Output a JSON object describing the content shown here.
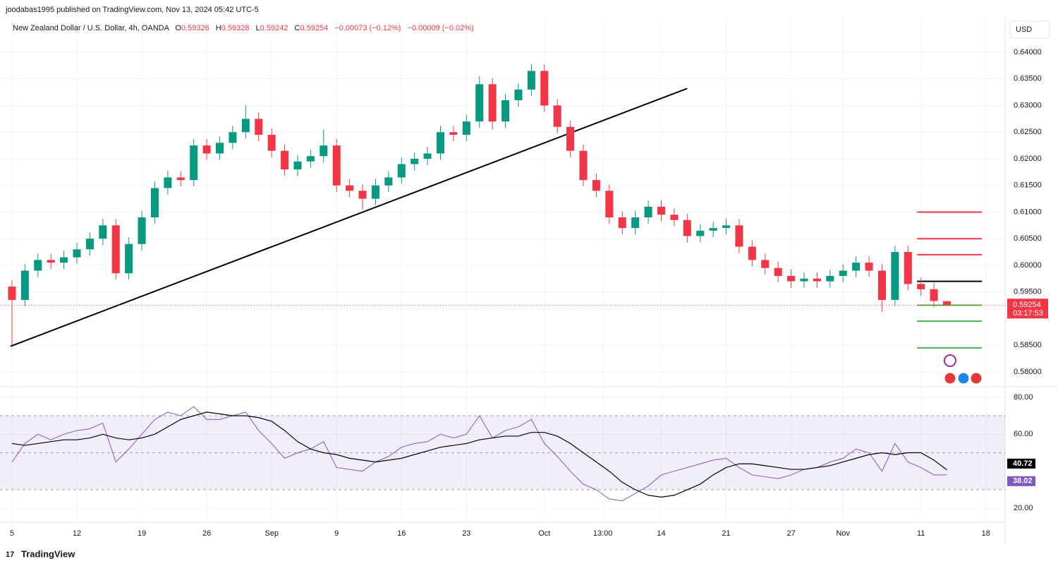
{
  "chart_data": {
    "type": "candlestick",
    "header": "joodabas1995 published on TradingView.com, Nov 13, 2024 05:42 UTC-5",
    "title": "New Zealand Dollar / U.S. Dollar, 4h, OANDA",
    "legend": {
      "o": "O",
      "h": "H",
      "l": "L",
      "c": "C",
      "change": "−0.00073 (−0.12%)",
      "change_ext": "−0.00009 (−0.02%)"
    },
    "currency": "USD",
    "countdown": "03:17:53",
    "brand": "TradingView",
    "up_color": "#089981",
    "down_color": "#f23645",
    "x": [
      0,
      1,
      2,
      3,
      4,
      5,
      6,
      7,
      8,
      9,
      10,
      11,
      12,
      13,
      14,
      15,
      16,
      17,
      18,
      19,
      20,
      21,
      22,
      23,
      24,
      25,
      26,
      27,
      28,
      29,
      30,
      31,
      32,
      33,
      34,
      35,
      36,
      37,
      38,
      39,
      40,
      41,
      42,
      43,
      44,
      45,
      46,
      47,
      48,
      49,
      50,
      51,
      52,
      53,
      54,
      55,
      56,
      57,
      58,
      59,
      60,
      61,
      62,
      63,
      64,
      65,
      66,
      67,
      68,
      69,
      70,
      71,
      72
    ],
    "open": [
      0.596,
      0.5935,
      0.599,
      0.601,
      0.6005,
      0.6015,
      0.603,
      0.605,
      0.6075,
      0.5985,
      0.604,
      0.609,
      0.6145,
      0.6165,
      0.616,
      0.6225,
      0.621,
      0.623,
      0.625,
      0.6275,
      0.6245,
      0.6215,
      0.618,
      0.6195,
      0.6205,
      0.6225,
      0.615,
      0.614,
      0.6125,
      0.615,
      0.6165,
      0.619,
      0.62,
      0.621,
      0.625,
      0.6245,
      0.627,
      0.634,
      0.627,
      0.631,
      0.633,
      0.6365,
      0.63,
      0.626,
      0.6215,
      0.616,
      0.614,
      0.609,
      0.607,
      0.609,
      0.611,
      0.6095,
      0.6085,
      0.6055,
      0.6065,
      0.607,
      0.6075,
      0.6035,
      0.601,
      0.5995,
      0.598,
      0.597,
      0.5975,
      0.597,
      0.598,
      0.599,
      0.6005,
      0.599,
      0.5935,
      0.6025,
      0.5965,
      0.5955,
      0.59326
    ],
    "high": [
      0.5972,
      0.6002,
      0.6022,
      0.6022,
      0.6027,
      0.6042,
      0.6062,
      0.6087,
      0.6087,
      0.6052,
      0.6102,
      0.6157,
      0.6177,
      0.6177,
      0.6237,
      0.6237,
      0.6242,
      0.6262,
      0.63,
      0.6287,
      0.6257,
      0.6227,
      0.6207,
      0.6217,
      0.6255,
      0.6237,
      0.6162,
      0.6152,
      0.6162,
      0.6177,
      0.6202,
      0.6212,
      0.6222,
      0.6262,
      0.6262,
      0.6282,
      0.6355,
      0.6352,
      0.6322,
      0.6342,
      0.6378,
      0.6377,
      0.6312,
      0.6272,
      0.6227,
      0.6172,
      0.6152,
      0.6102,
      0.6102,
      0.6122,
      0.6122,
      0.6107,
      0.6097,
      0.6077,
      0.6082,
      0.6087,
      0.6087,
      0.6047,
      0.6022,
      0.6007,
      0.5992,
      0.5987,
      0.5987,
      0.5992,
      0.6002,
      0.6017,
      0.6017,
      0.6002,
      0.6037,
      0.6037,
      0.5977,
      0.5967,
      0.59328
    ],
    "low": [
      0.585,
      0.5923,
      0.5978,
      0.5993,
      0.5993,
      0.6003,
      0.6018,
      0.6038,
      0.5973,
      0.5973,
      0.6028,
      0.6078,
      0.6133,
      0.6148,
      0.6148,
      0.6198,
      0.6198,
      0.6218,
      0.6238,
      0.6233,
      0.6203,
      0.6168,
      0.6168,
      0.6183,
      0.6193,
      0.6138,
      0.6128,
      0.6105,
      0.6113,
      0.6138,
      0.6153,
      0.6178,
      0.6188,
      0.6198,
      0.6233,
      0.6233,
      0.6258,
      0.6255,
      0.6258,
      0.6298,
      0.6318,
      0.6288,
      0.6248,
      0.6203,
      0.6148,
      0.6128,
      0.6078,
      0.6058,
      0.6058,
      0.6078,
      0.6083,
      0.6073,
      0.6043,
      0.6043,
      0.6053,
      0.6058,
      0.6023,
      0.5998,
      0.5983,
      0.5968,
      0.5958,
      0.5958,
      0.5958,
      0.5958,
      0.5968,
      0.5978,
      0.5978,
      0.5913,
      0.5923,
      0.5953,
      0.5943,
      0.5921,
      0.59242
    ],
    "close": [
      0.5935,
      0.599,
      0.601,
      0.6005,
      0.6015,
      0.603,
      0.605,
      0.6075,
      0.5985,
      0.604,
      0.609,
      0.6145,
      0.6165,
      0.616,
      0.6225,
      0.621,
      0.623,
      0.625,
      0.6275,
      0.6245,
      0.6215,
      0.618,
      0.6195,
      0.6205,
      0.6225,
      0.615,
      0.614,
      0.6125,
      0.615,
      0.6165,
      0.619,
      0.62,
      0.621,
      0.625,
      0.6245,
      0.627,
      0.634,
      0.627,
      0.631,
      0.633,
      0.6365,
      0.63,
      0.626,
      0.6215,
      0.616,
      0.614,
      0.609,
      0.607,
      0.609,
      0.611,
      0.6095,
      0.6085,
      0.6055,
      0.6065,
      0.607,
      0.6075,
      0.6035,
      0.601,
      0.5995,
      0.598,
      0.597,
      0.5975,
      0.597,
      0.598,
      0.599,
      0.6005,
      0.599,
      0.5935,
      0.6025,
      0.5965,
      0.5955,
      0.5933,
      0.59254
    ],
    "xlim": [
      -0.92,
      76.48
    ],
    "xticks": [
      {
        "value": 0,
        "label": "5"
      },
      {
        "value": 5,
        "label": "12"
      },
      {
        "value": 10,
        "label": "19"
      },
      {
        "value": 15,
        "label": "26"
      },
      {
        "value": 20,
        "label": "Sep"
      },
      {
        "value": 25,
        "label": "9"
      },
      {
        "value": 30,
        "label": "16"
      },
      {
        "value": 35,
        "label": "23"
      },
      {
        "value": 41,
        "label": "Oct"
      },
      {
        "value": 45.5,
        "label": "13:00"
      },
      {
        "value": 50,
        "label": "14"
      },
      {
        "value": 55,
        "label": "21"
      },
      {
        "value": 60,
        "label": "27"
      },
      {
        "value": 64,
        "label": "Nov"
      },
      {
        "value": 70,
        "label": "11"
      },
      {
        "value": 75,
        "label": "18"
      }
    ],
    "ylim": [
      0.5772,
      0.6465
    ],
    "yticks": [
      {
        "value": 0.58,
        "label": "0.58000"
      },
      {
        "value": 0.585,
        "label": "0.58500"
      },
      {
        "value": 0.595,
        "label": "0.59500"
      },
      {
        "value": 0.6,
        "label": "0.60000"
      },
      {
        "value": 0.605,
        "label": "0.60500"
      },
      {
        "value": 0.61,
        "label": "0.61000"
      },
      {
        "value": 0.615,
        "label": "0.61500"
      },
      {
        "value": 0.62,
        "label": "0.62000"
      },
      {
        "value": 0.625,
        "label": "0.62500"
      },
      {
        "value": 0.63,
        "label": "0.63000"
      },
      {
        "value": 0.635,
        "label": "0.63500"
      },
      {
        "value": 0.64,
        "label": "0.64000"
      }
    ],
    "grid": true,
    "trendline": {
      "x": [
        -0.11,
        52.0
      ],
      "y": [
        0.5848,
        0.6332
      ],
      "color": "#000000"
    },
    "levels": [
      {
        "value": 0.61,
        "x": [
          69.7,
          74.7
        ],
        "color": "#f23645"
      },
      {
        "value": 0.605,
        "x": [
          69.7,
          74.7
        ],
        "color": "#f23645"
      },
      {
        "value": 0.602,
        "x": [
          69.7,
          74.7
        ],
        "color": "#f23645"
      },
      {
        "value": 0.597,
        "x": [
          69.7,
          74.7
        ],
        "color": "#000000"
      },
      {
        "value": 0.5925,
        "x": [
          69.7,
          74.7
        ],
        "color": "#4caf50"
      },
      {
        "value": 0.5895,
        "x": [
          69.7,
          74.7
        ],
        "color": "#4caf50"
      },
      {
        "value": 0.5845,
        "x": [
          69.7,
          74.7
        ],
        "color": "#4caf50"
      }
    ],
    "rsi": {
      "ylim": [
        12.4,
        85.7
      ],
      "yticks": [
        {
          "value": 20,
          "label": "20.00"
        },
        {
          "value": 60,
          "label": "60.00"
        },
        {
          "value": 80,
          "label": "80.00"
        }
      ],
      "bands": [
        70,
        50,
        30
      ],
      "band_color": "#7e57c2",
      "line": {
        "color": "#7e57c2",
        "values": [
          45,
          55,
          60,
          57,
          60,
          62,
          63,
          66,
          45,
          52,
          60,
          68,
          72,
          70,
          75,
          68,
          68,
          70,
          72,
          62,
          55,
          47,
          50,
          52,
          56,
          42,
          41,
          40,
          45,
          48,
          53,
          55,
          56,
          60,
          58,
          60,
          70,
          58,
          62,
          64,
          68,
          55,
          48,
          40,
          33,
          30,
          25,
          24,
          28,
          32,
          38,
          40,
          42,
          44,
          46,
          47,
          42,
          38,
          37,
          36,
          38,
          41,
          42,
          45,
          47,
          52,
          50,
          40,
          55,
          45,
          42,
          38,
          38.02
        ]
      },
      "ma": {
        "color": "#000000",
        "values": [
          55,
          54,
          55,
          56,
          57,
          57,
          58,
          60,
          58,
          57,
          58,
          60,
          64,
          68,
          70,
          72,
          71,
          70,
          70,
          69,
          67,
          62,
          56,
          52,
          50,
          49,
          47,
          46,
          45,
          46,
          47,
          49,
          51,
          53,
          54,
          55,
          57,
          58,
          59,
          59,
          61,
          61,
          59,
          55,
          50,
          45,
          40,
          34,
          30,
          27,
          26,
          27,
          30,
          33,
          38,
          42,
          44,
          44,
          43,
          42,
          41,
          41,
          42,
          43,
          45,
          47,
          49,
          50,
          49,
          50,
          50,
          46,
          40.72
        ]
      }
    }
  }
}
